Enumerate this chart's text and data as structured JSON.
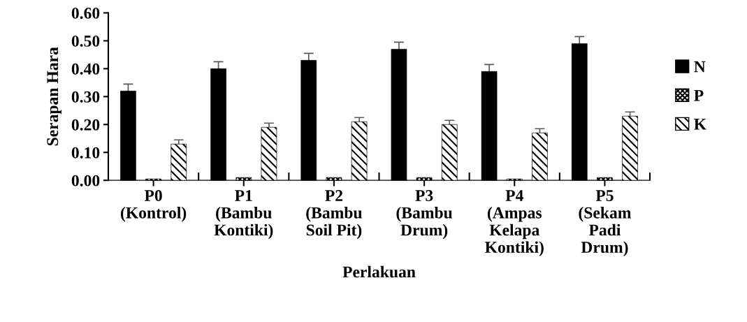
{
  "chart_data": {
    "type": "bar",
    "xlabel": "Perlakuan",
    "ylabel": "Serapan Hara",
    "categories": [
      "P0\n(Kontrol)",
      "P1\n(Bambu\nKontiki)",
      "P2\n(Bambu\nSoil Pit)",
      "P3\n(Bambu\nDrum)",
      "P4\n(Ampas\nKelapa\nKontiki)",
      "P5\n(Sekam\nPadi\nDrum)"
    ],
    "series": [
      {
        "name": "N",
        "color": "#000000",
        "values": [
          0.32,
          0.4,
          0.43,
          0.47,
          0.39,
          0.49
        ],
        "errors": [
          0.025,
          0.025,
          0.025,
          0.025,
          0.025,
          0.025
        ]
      },
      {
        "name": "P",
        "color": "#000000",
        "values": [
          0.005,
          0.01,
          0.01,
          0.01,
          0.005,
          0.01
        ]
      },
      {
        "name": "K",
        "color": "#000000",
        "values": [
          0.13,
          0.19,
          0.21,
          0.2,
          0.17,
          0.23
        ],
        "errors": [
          0.015,
          0.015,
          0.015,
          0.015,
          0.015,
          0.015
        ]
      }
    ],
    "ylim": [
      0,
      0.6
    ],
    "yticks": [
      {
        "value": 0,
        "label": "0.00"
      },
      {
        "value": 0.1,
        "label": "0.10"
      },
      {
        "value": 0.2,
        "label": "0.20"
      },
      {
        "value": 0.3,
        "label": "0.30"
      },
      {
        "value": 0.4,
        "label": "0.40"
      },
      {
        "value": 0.5,
        "label": "0.50"
      },
      {
        "value": 0.6,
        "label": "0.60"
      }
    ],
    "legend": "right",
    "grid": false
  }
}
